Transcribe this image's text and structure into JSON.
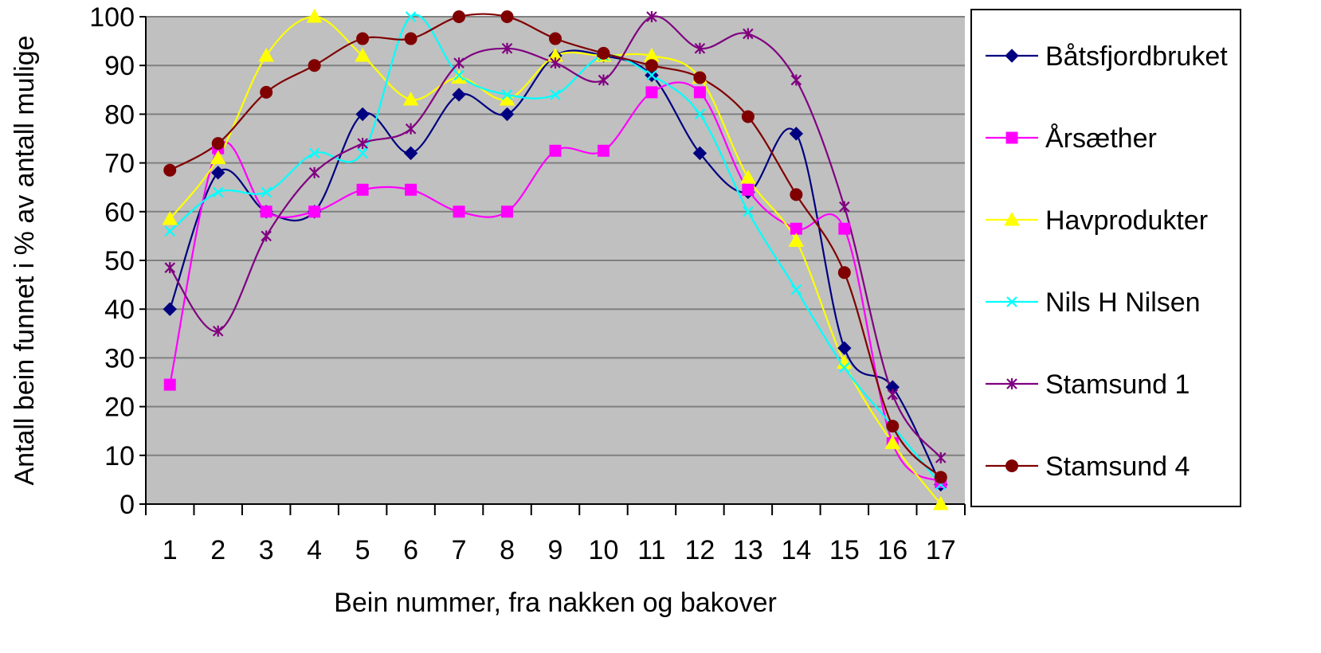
{
  "chart_data": {
    "type": "line",
    "xlabel": "Bein nummer, fra nakken og bakover",
    "ylabel": "Antall bein funnet i % av antall mulige",
    "categories": [
      "1",
      "2",
      "3",
      "4",
      "5",
      "6",
      "7",
      "8",
      "9",
      "10",
      "11",
      "12",
      "13",
      "14",
      "15",
      "16",
      "17"
    ],
    "ylim": [
      0,
      100
    ],
    "yticks": [
      0,
      10,
      20,
      30,
      40,
      50,
      60,
      70,
      80,
      90,
      100
    ],
    "grid": "horizontal",
    "legend_position": "right",
    "plot_background": "#C0C0C0",
    "series": [
      {
        "name": "Båtsfjordbruket",
        "color": "#000080",
        "marker": "diamond",
        "values": [
          40,
          68,
          60,
          60,
          80,
          72,
          84,
          80,
          92,
          92,
          88,
          72,
          64,
          76,
          32,
          24,
          4
        ]
      },
      {
        "name": "Årsæther",
        "color": "#FF00FF",
        "marker": "square",
        "values": [
          24.5,
          73,
          60,
          60,
          64.5,
          64.5,
          60,
          60,
          72.5,
          72.5,
          84.5,
          84.5,
          64.5,
          56.5,
          56.5,
          12.5,
          4.5
        ]
      },
      {
        "name": "Havprodukter",
        "color": "#FFFF00",
        "marker": "triangle",
        "values": [
          58.5,
          71,
          92,
          100,
          92,
          83,
          87.5,
          83,
          92,
          92,
          92,
          87.5,
          67,
          54,
          29,
          12.5,
          0
        ]
      },
      {
        "name": "Nils H Nilsen",
        "color": "#00FFFF",
        "marker": "x",
        "values": [
          56,
          64,
          64,
          72,
          72,
          100,
          88,
          84,
          84,
          92,
          88,
          80,
          60,
          44,
          28,
          16,
          4
        ]
      },
      {
        "name": "Stamsund 1",
        "color": "#800080",
        "marker": "star",
        "values": [
          48.5,
          35.5,
          55,
          68,
          74,
          77,
          90.5,
          93.5,
          90.5,
          87,
          100,
          93.5,
          96.5,
          87,
          61,
          22.5,
          9.5
        ]
      },
      {
        "name": "Stamsund 4",
        "color": "#800000",
        "marker": "circle",
        "values": [
          68.5,
          74,
          84.5,
          90,
          95.5,
          95.5,
          100,
          100,
          95.5,
          92.5,
          90,
          87.5,
          79.5,
          63.5,
          47.5,
          16,
          5.5
        ]
      }
    ]
  }
}
